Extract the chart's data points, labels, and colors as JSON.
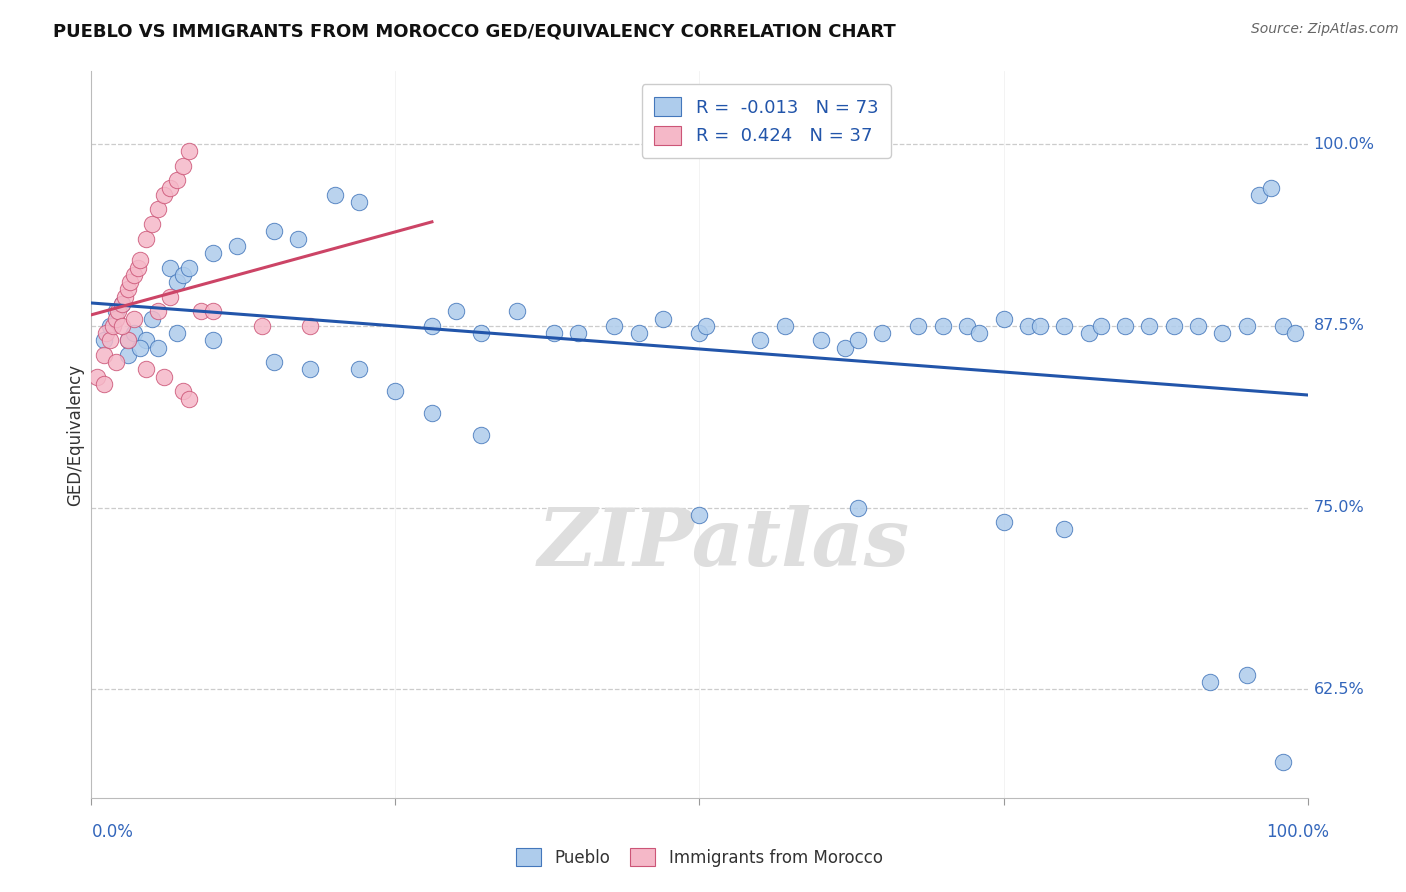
{
  "title": "PUEBLO VS IMMIGRANTS FROM MOROCCO GED/EQUIVALENCY CORRELATION CHART",
  "source": "Source: ZipAtlas.com",
  "ylabel": "GED/Equivalency",
  "blue_R": -0.013,
  "blue_N": 73,
  "pink_R": 0.424,
  "pink_N": 37,
  "blue_color": "#aeccec",
  "pink_color": "#f5b8c8",
  "blue_edge_color": "#4477bb",
  "pink_edge_color": "#cc5577",
  "blue_line_color": "#2255aa",
  "pink_line_color": "#cc4466",
  "legend_blue_label": "Pueblo",
  "legend_pink_label": "Immigrants from Morocco",
  "watermark_text": "ZIPatlas",
  "xlim": [
    0.0,
    100.0
  ],
  "ylim": [
    55.0,
    105.0
  ],
  "blue_x": [
    1.0,
    1.5,
    2.0,
    2.5,
    3.0,
    3.5,
    4.5,
    5.0,
    6.5,
    7.0,
    7.5,
    8.0,
    10.0,
    12.0,
    15.0,
    17.0,
    20.0,
    22.0,
    28.0,
    30.0,
    32.0,
    35.0,
    38.0,
    40.0,
    43.0,
    45.0,
    47.0,
    50.0,
    50.5,
    55.0,
    57.0,
    60.0,
    62.0,
    63.0,
    65.0,
    68.0,
    70.0,
    72.0,
    73.0,
    75.0,
    77.0,
    78.0,
    80.0,
    82.0,
    83.0,
    85.0,
    87.0,
    89.0,
    91.0,
    93.0,
    95.0,
    96.0,
    97.0,
    98.0,
    99.0,
    3.0,
    4.0,
    5.5,
    7.0,
    10.0,
    15.0,
    18.0,
    22.0,
    25.0,
    28.0,
    32.0,
    50.0,
    63.0,
    75.0,
    80.0,
    92.0,
    95.0,
    98.0
  ],
  "blue_y": [
    86.5,
    87.5,
    88.5,
    89.0,
    86.5,
    87.0,
    86.5,
    88.0,
    91.5,
    90.5,
    91.0,
    91.5,
    92.5,
    93.0,
    94.0,
    93.5,
    96.5,
    96.0,
    87.5,
    88.5,
    87.0,
    88.5,
    87.0,
    87.0,
    87.5,
    87.0,
    88.0,
    87.0,
    87.5,
    86.5,
    87.5,
    86.5,
    86.0,
    86.5,
    87.0,
    87.5,
    87.5,
    87.5,
    87.0,
    88.0,
    87.5,
    87.5,
    87.5,
    87.0,
    87.5,
    87.5,
    87.5,
    87.5,
    87.5,
    87.0,
    87.5,
    96.5,
    97.0,
    87.5,
    87.0,
    85.5,
    86.0,
    86.0,
    87.0,
    86.5,
    85.0,
    84.5,
    84.5,
    83.0,
    81.5,
    80.0,
    74.5,
    75.0,
    74.0,
    73.5,
    63.0,
    63.5,
    57.5
  ],
  "pink_x": [
    0.5,
    1.0,
    1.2,
    1.5,
    1.8,
    2.0,
    2.2,
    2.5,
    2.8,
    3.0,
    3.2,
    3.5,
    3.8,
    4.0,
    4.5,
    5.0,
    5.5,
    6.0,
    6.5,
    7.0,
    7.5,
    8.0,
    1.0,
    2.0,
    3.0,
    4.5,
    6.0,
    7.5,
    8.0,
    2.5,
    3.5,
    5.5,
    6.5,
    9.0,
    10.0,
    14.0,
    18.0
  ],
  "pink_y": [
    84.0,
    85.5,
    87.0,
    86.5,
    87.5,
    88.0,
    88.5,
    89.0,
    89.5,
    90.0,
    90.5,
    91.0,
    91.5,
    92.0,
    93.5,
    94.5,
    95.5,
    96.5,
    97.0,
    97.5,
    98.5,
    99.5,
    83.5,
    85.0,
    86.5,
    84.5,
    84.0,
    83.0,
    82.5,
    87.5,
    88.0,
    88.5,
    89.5,
    88.5,
    88.5,
    87.5,
    87.5
  ]
}
